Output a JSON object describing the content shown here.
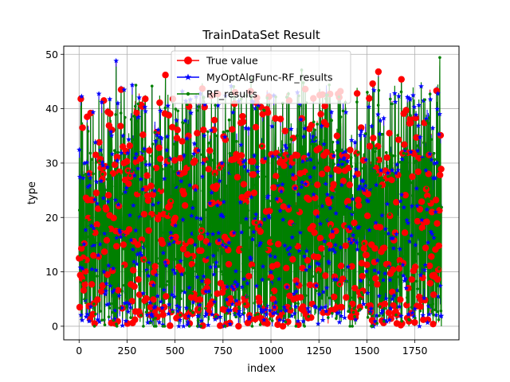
{
  "chart_data": {
    "type": "line",
    "title": "TrainDataSet Result",
    "xlabel": "index",
    "ylabel": "type",
    "xlim": [
      -80,
      1980
    ],
    "ylim": [
      -2.5,
      51.5
    ],
    "xticks": [
      0,
      250,
      500,
      750,
      1000,
      1250,
      1500,
      1750
    ],
    "yticks": [
      0,
      10,
      20,
      30,
      40,
      50
    ],
    "grid": true,
    "legend_position": "top-center",
    "n_points": 1890,
    "series": [
      {
        "name": "True value",
        "color": "#ff0000",
        "marker": "circle"
      },
      {
        "name": "MyOptAlgFunc-RF_results",
        "color": "#0000ff",
        "marker": "star"
      },
      {
        "name": "RF_results",
        "color": "#008000",
        "marker": "point"
      }
    ],
    "highlights": [
      {
        "x": 193,
        "y": 48.6
      },
      {
        "x": 235,
        "y": 43.7
      },
      {
        "x": 380,
        "y": 43.5
      },
      {
        "x": 450,
        "y": 46.2
      },
      {
        "x": 896,
        "y": 45.8
      },
      {
        "x": 1160,
        "y": 47.0
      },
      {
        "x": 1560,
        "y": 46.8
      },
      {
        "x": 1530,
        "y": 44.6
      },
      {
        "x": 1680,
        "y": 45.4
      },
      {
        "x": 1880,
        "y": 48.7
      },
      {
        "x": 1720,
        "y": 42.3
      },
      {
        "x": 1820,
        "y": 38.7
      },
      {
        "x": 1050,
        "y": 38.1
      },
      {
        "x": 60,
        "y": 39.2
      }
    ]
  }
}
